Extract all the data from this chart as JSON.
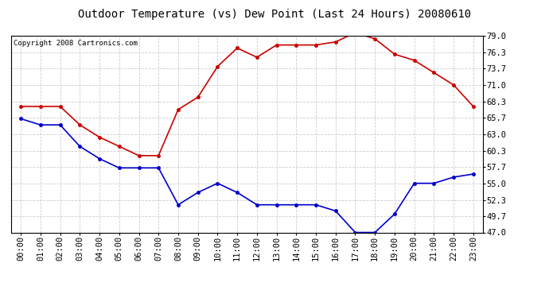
{
  "title": "Outdoor Temperature (vs) Dew Point (Last 24 Hours) 20080610",
  "copyright": "Copyright 2008 Cartronics.com",
  "x_labels": [
    "00:00",
    "01:00",
    "02:00",
    "03:00",
    "04:00",
    "05:00",
    "06:00",
    "07:00",
    "08:00",
    "09:00",
    "10:00",
    "11:00",
    "12:00",
    "13:00",
    "14:00",
    "15:00",
    "16:00",
    "17:00",
    "18:00",
    "19:00",
    "20:00",
    "21:00",
    "22:00",
    "23:00"
  ],
  "temp_red": [
    67.5,
    67.5,
    67.5,
    64.5,
    62.5,
    61.0,
    59.5,
    59.5,
    67.0,
    69.0,
    74.0,
    77.0,
    75.5,
    77.5,
    77.5,
    77.5,
    78.0,
    79.5,
    78.5,
    76.0,
    75.0,
    73.0,
    71.0,
    67.5
  ],
  "temp_blue": [
    65.5,
    64.5,
    64.5,
    61.0,
    59.0,
    57.5,
    57.5,
    57.5,
    51.5,
    53.5,
    55.0,
    53.5,
    51.5,
    51.5,
    51.5,
    51.5,
    50.5,
    47.0,
    47.0,
    50.0,
    55.0,
    55.0,
    56.0,
    56.5
  ],
  "y_ticks": [
    47.0,
    49.7,
    52.3,
    55.0,
    57.7,
    60.3,
    63.0,
    65.7,
    68.3,
    71.0,
    73.7,
    76.3,
    79.0
  ],
  "ylim": [
    47.0,
    79.0
  ],
  "background": "#ffffff",
  "plot_bg": "#ffffff",
  "grid_color": "#cccccc",
  "red_color": "#cc0000",
  "blue_color": "#0000cc",
  "title_fontsize": 10,
  "tick_fontsize": 7.5,
  "copyright_fontsize": 6.5
}
